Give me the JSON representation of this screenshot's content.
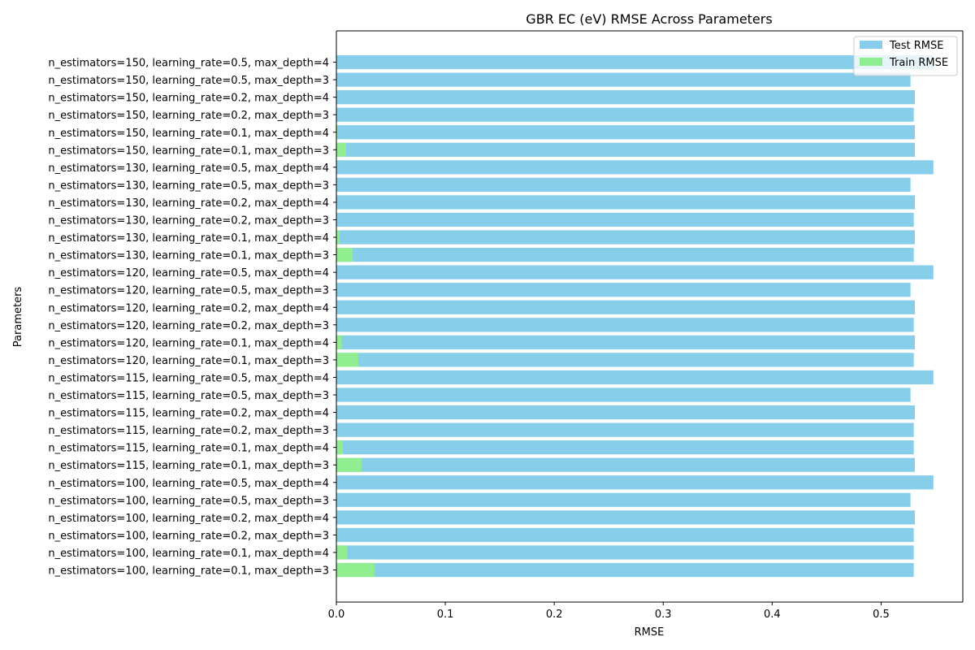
{
  "chart_data": {
    "type": "bar",
    "orientation": "horizontal",
    "title": "GBR EC (eV) RMSE Across Parameters",
    "xlabel": "RMSE",
    "ylabel": "Parameters",
    "xlim": [
      0.0,
      0.575
    ],
    "xticks": [
      0.0,
      0.1,
      0.2,
      0.3,
      0.4,
      0.5
    ],
    "xtick_labels": [
      "0.0",
      "0.1",
      "0.2",
      "0.3",
      "0.4",
      "0.5"
    ],
    "grid": false,
    "legend_position": "top-right",
    "categories": [
      "n_estimators=100, learning_rate=0.1, max_depth=3",
      "n_estimators=100, learning_rate=0.1, max_depth=4",
      "n_estimators=100, learning_rate=0.2, max_depth=3",
      "n_estimators=100, learning_rate=0.2, max_depth=4",
      "n_estimators=100, learning_rate=0.5, max_depth=3",
      "n_estimators=100, learning_rate=0.5, max_depth=4",
      "n_estimators=115, learning_rate=0.1, max_depth=3",
      "n_estimators=115, learning_rate=0.1, max_depth=4",
      "n_estimators=115, learning_rate=0.2, max_depth=3",
      "n_estimators=115, learning_rate=0.2, max_depth=4",
      "n_estimators=115, learning_rate=0.5, max_depth=3",
      "n_estimators=115, learning_rate=0.5, max_depth=4",
      "n_estimators=120, learning_rate=0.1, max_depth=3",
      "n_estimators=120, learning_rate=0.1, max_depth=4",
      "n_estimators=120, learning_rate=0.2, max_depth=3",
      "n_estimators=120, learning_rate=0.2, max_depth=4",
      "n_estimators=120, learning_rate=0.5, max_depth=3",
      "n_estimators=120, learning_rate=0.5, max_depth=4",
      "n_estimators=130, learning_rate=0.1, max_depth=3",
      "n_estimators=130, learning_rate=0.1, max_depth=4",
      "n_estimators=130, learning_rate=0.2, max_depth=3",
      "n_estimators=130, learning_rate=0.2, max_depth=4",
      "n_estimators=130, learning_rate=0.5, max_depth=3",
      "n_estimators=130, learning_rate=0.5, max_depth=4",
      "n_estimators=150, learning_rate=0.1, max_depth=3",
      "n_estimators=150, learning_rate=0.1, max_depth=4",
      "n_estimators=150, learning_rate=0.2, max_depth=3",
      "n_estimators=150, learning_rate=0.2, max_depth=4",
      "n_estimators=150, learning_rate=0.5, max_depth=3",
      "n_estimators=150, learning_rate=0.5, max_depth=4"
    ],
    "series": [
      {
        "name": "Test RMSE",
        "color": "#87ceeb",
        "values": [
          0.53,
          0.53,
          0.53,
          0.531,
          0.527,
          0.548,
          0.531,
          0.53,
          0.53,
          0.531,
          0.527,
          0.548,
          0.53,
          0.531,
          0.53,
          0.531,
          0.527,
          0.548,
          0.53,
          0.531,
          0.53,
          0.531,
          0.527,
          0.548,
          0.531,
          0.531,
          0.53,
          0.531,
          0.527,
          0.548
        ]
      },
      {
        "name": "Train RMSE",
        "color": "#90ee90",
        "values": [
          0.035,
          0.01,
          0.0005,
          0.0002,
          0.0,
          0.0,
          0.023,
          0.006,
          0.0004,
          0.0001,
          0.0,
          0.0,
          0.02,
          0.005,
          0.0003,
          0.0001,
          0.0,
          0.0,
          0.015,
          0.003,
          0.0002,
          0.0001,
          0.0,
          0.0,
          0.009,
          0.001,
          0.0001,
          0.0,
          0.0,
          0.0
        ]
      }
    ]
  }
}
